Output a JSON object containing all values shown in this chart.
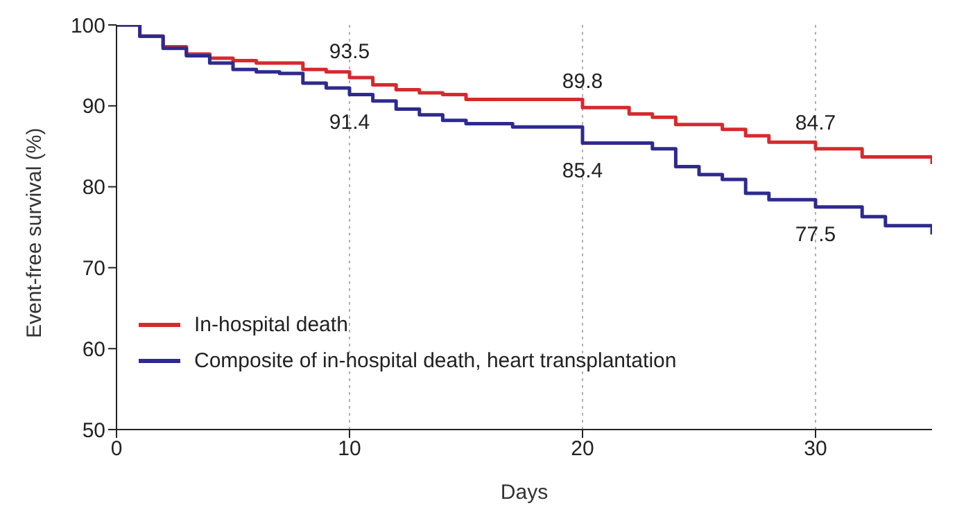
{
  "chart_data": {
    "type": "step",
    "xlabel": "Days",
    "ylabel": "Event-free survival (%)",
    "xlim": [
      0,
      35
    ],
    "xticks": [
      0,
      10,
      20,
      30
    ],
    "ylim": [
      50,
      100
    ],
    "yticks": [
      50,
      60,
      70,
      80,
      90,
      100
    ],
    "grid": false,
    "legend": "bottom left",
    "marker": "none",
    "line_style": "solid",
    "series": [
      {
        "name": "In-hospital death",
        "color": "#d62a2e",
        "x": [
          0,
          1,
          2,
          3,
          4,
          5,
          6,
          8,
          9,
          10,
          11,
          12,
          13,
          14,
          15,
          20,
          22,
          23,
          24,
          26,
          27,
          28,
          30,
          32,
          35
        ],
        "values": [
          100,
          98.6,
          97.3,
          96.4,
          95.9,
          95.6,
          95.3,
          94.5,
          94.2,
          93.5,
          92.6,
          92.0,
          91.6,
          91.4,
          90.8,
          89.8,
          89.0,
          88.6,
          87.7,
          87.1,
          86.3,
          85.5,
          84.7,
          83.7,
          82.8
        ]
      },
      {
        "name": "Composite of in-hospital death, heart transplantation",
        "color": "#2e2a8e",
        "x": [
          0,
          1,
          2,
          3,
          4,
          5,
          6,
          7,
          8,
          9,
          10,
          11,
          12,
          13,
          14,
          15,
          17,
          20,
          23,
          24,
          25,
          26,
          27,
          28,
          30,
          32,
          33,
          35
        ],
        "values": [
          100,
          98.6,
          97.1,
          96.2,
          95.3,
          94.5,
          94.2,
          94.0,
          92.8,
          92.2,
          91.4,
          90.6,
          89.6,
          88.9,
          88.2,
          87.8,
          87.4,
          85.4,
          84.7,
          82.5,
          81.5,
          80.9,
          79.2,
          78.4,
          77.5,
          76.3,
          75.2,
          74.1
        ]
      }
    ],
    "ref_lines": [
      {
        "axis": "x",
        "value": 10,
        "color": "#b0b0b0",
        "line_style": "dotted"
      },
      {
        "axis": "x",
        "value": 20,
        "color": "#b0b0b0",
        "line_style": "dotted"
      },
      {
        "axis": "x",
        "value": 30,
        "color": "#b0b0b0",
        "line_style": "dotted"
      }
    ],
    "annotations": [
      {
        "text": "93.5",
        "x": 10,
        "y": 93.5
      },
      {
        "text": "91.4",
        "x": 10,
        "y": 91.4
      },
      {
        "text": "89.8",
        "x": 20,
        "y": 89.8
      },
      {
        "text": "85.4",
        "x": 20,
        "y": 85.4
      },
      {
        "text": "84.7",
        "x": 30,
        "y": 84.7
      },
      {
        "text": "77.5",
        "x": 30,
        "y": 77.5
      }
    ]
  }
}
